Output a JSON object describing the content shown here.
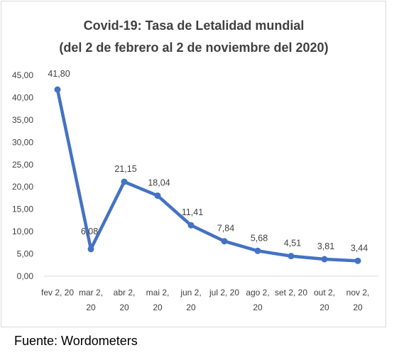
{
  "chart_data": {
    "type": "line",
    "title": [
      "Covid-19: Tasa de Letalidad mundial",
      "(del 2 de febrero al 2 de noviembre del 2020)"
    ],
    "xlabel": "",
    "ylabel": "",
    "categories": [
      [
        "fev 2, 20"
      ],
      [
        "mar 2,",
        "20"
      ],
      [
        "abr 2,",
        "20"
      ],
      [
        "mai 2,",
        "20"
      ],
      [
        "jun 2,",
        "20"
      ],
      [
        "jul 2, 20"
      ],
      [
        "ago 2,",
        "20"
      ],
      [
        "set 2, 20"
      ],
      [
        "out 2,",
        "20"
      ],
      [
        "nov 2,",
        "20"
      ]
    ],
    "series": [
      {
        "values": [
          41.8,
          6.08,
          21.15,
          18.04,
          11.41,
          7.84,
          5.68,
          4.51,
          3.81,
          3.44
        ],
        "labels": [
          "41,80",
          "6,08",
          "21,15",
          "18,04",
          "11,41",
          "7,84",
          "5,68",
          "4,51",
          "3,81",
          "3,44"
        ],
        "color": "#4472c4"
      }
    ],
    "y_ticks": [
      "0,00",
      "5,00",
      "10,00",
      "15,00",
      "20,00",
      "25,00",
      "30,00",
      "35,00",
      "40,00",
      "45,00"
    ],
    "ylim": [
      0,
      45
    ],
    "grid": false,
    "legend": "none"
  },
  "source_note": "Fuente: Wordometers"
}
